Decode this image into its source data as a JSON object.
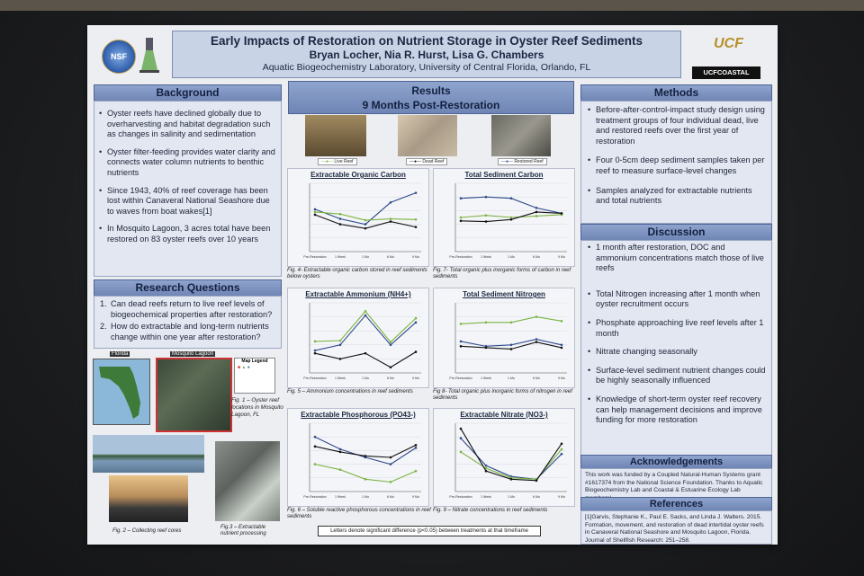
{
  "header": {
    "title": "Early Impacts of Restoration on Nutrient Storage in Oyster Reef Sediments",
    "authors": "Bryan Locher, Nia R. Hurst, Lisa G. Chambers",
    "affiliation": "Aquatic Biogeochemistry Laboratory, University of Central Florida, Orlando, FL",
    "logo_left": "NSF",
    "logo_right": "UCF",
    "logo_right2": "UCFCOASTAL"
  },
  "background": {
    "heading": "Background",
    "items": [
      "Oyster reefs have declined globally due to overharvesting and habitat degradation such as changes in salinity and sedimentation",
      "Oyster filter-feeding provides water clarity and connects water column nutrients to benthic nutrients",
      "Since 1943, 40% of reef coverage has been lost within Canaveral National Seashore due to waves from boat wakes[1]",
      "In Mosquito Lagoon, 3 acres total have been restored on 83 oyster reefs over 10 years"
    ]
  },
  "questions": {
    "heading": "Research Questions",
    "items": [
      "Can dead reefs return to live reef levels of biogeochemical properties after restoration?",
      "How do extractable and long-term nutrients change within one year after restoration?"
    ]
  },
  "figures": {
    "map_florida": "Florida",
    "map_lagoon": "Mosquito Lagoon",
    "map_legend": "Map Legend",
    "fig1": "Fig. 1 – Oyster reef locations in Mosquito Lagoon, FL",
    "fig2": "Fig. 2 – Collecting reef cores",
    "fig3": "Fig.3 – Extractable nutrient processing"
  },
  "results": {
    "heading": "Results",
    "subheading": "9 Months Post-Restoration",
    "photo_labels": [
      "Live Reef",
      "Dead Reef",
      "Restored Reef"
    ],
    "captions": [
      "Fig. 4- Extractable organic carbon stored in reef sediments below oysters",
      "Fig. 7- Total organic plus inorganic forms of carbon in reef sediments",
      "Fig. 5 – Ammonium concentrations in reef sediments",
      "Fig 8- Total organic plus inorganic forms of nitrogen in reef sediments",
      "Fig. 6 – Soluble reactive phosphorous concentrations in reef sediments",
      "Fig. 9 – Nitrate concentrations in reef sediments"
    ],
    "footnote": "Letters denote significant difference (p<0.05) between treatments at that timeframe"
  },
  "chart_data": [
    {
      "type": "line",
      "title": "Extractable Organic Carbon",
      "categories": [
        "Pre-Restoration",
        "1 Week",
        "1 Mo",
        "6 Mo",
        "9 Mo"
      ],
      "series": [
        {
          "color": "#2f4a8c",
          "values": [
            0.62,
            0.48,
            0.4,
            0.72,
            0.86
          ]
        },
        {
          "color": "#7cb342",
          "values": [
            0.58,
            0.55,
            0.46,
            0.48,
            0.47
          ]
        },
        {
          "color": "#111111",
          "values": [
            0.54,
            0.4,
            0.34,
            0.44,
            0.36
          ]
        }
      ]
    },
    {
      "type": "line",
      "title": "Total Sediment Carbon",
      "categories": [
        "Pre-Restoration",
        "1 Week",
        "1 Mo",
        "6 Mo",
        "9 Mo"
      ],
      "series": [
        {
          "color": "#2f4a8c",
          "values": [
            0.78,
            0.8,
            0.78,
            0.64,
            0.56
          ]
        },
        {
          "color": "#7cb342",
          "values": [
            0.5,
            0.53,
            0.5,
            0.52,
            0.54
          ]
        },
        {
          "color": "#111111",
          "values": [
            0.45,
            0.44,
            0.47,
            0.58,
            0.56
          ]
        }
      ]
    },
    {
      "type": "line",
      "title": "Extractable Ammonium (NH4+)",
      "categories": [
        "Pre-Restoration",
        "1 Week",
        "1 Mo",
        "6 Mo",
        "9 Mo"
      ],
      "series": [
        {
          "color": "#2f4a8c",
          "values": [
            0.32,
            0.4,
            0.82,
            0.4,
            0.72
          ]
        },
        {
          "color": "#7cb342",
          "values": [
            0.45,
            0.46,
            0.88,
            0.44,
            0.78
          ]
        },
        {
          "color": "#111111",
          "values": [
            0.28,
            0.2,
            0.28,
            0.08,
            0.3
          ]
        }
      ]
    },
    {
      "type": "line",
      "title": "Total Sediment Nitrogen",
      "categories": [
        "Pre-Restoration",
        "1 Week",
        "1 Mo",
        "6 Mo",
        "9 Mo"
      ],
      "series": [
        {
          "color": "#2f4a8c",
          "values": [
            0.45,
            0.38,
            0.4,
            0.48,
            0.4
          ]
        },
        {
          "color": "#7cb342",
          "values": [
            0.7,
            0.72,
            0.72,
            0.8,
            0.74
          ]
        },
        {
          "color": "#111111",
          "values": [
            0.38,
            0.36,
            0.34,
            0.44,
            0.36
          ]
        }
      ]
    },
    {
      "type": "line",
      "title": "Extractable Phosphorous (PO43-)",
      "categories": [
        "Pre-Restoration",
        "1 Week",
        "1 Mo",
        "6 Mo",
        "9 Mo"
      ],
      "series": [
        {
          "color": "#2f4a8c",
          "values": [
            0.8,
            0.62,
            0.5,
            0.4,
            0.64
          ]
        },
        {
          "color": "#111111",
          "values": [
            0.66,
            0.58,
            0.52,
            0.5,
            0.68
          ]
        },
        {
          "color": "#7cb342",
          "values": [
            0.4,
            0.32,
            0.18,
            0.14,
            0.3
          ]
        }
      ]
    },
    {
      "type": "line",
      "title": "Extractable Nitrate (NO3-)",
      "categories": [
        "Pre-Restoration",
        "1 Week",
        "1 Mo",
        "6 Mo",
        "9 Mo"
      ],
      "series": [
        {
          "color": "#2f4a8c",
          "values": [
            0.78,
            0.38,
            0.22,
            0.18,
            0.55
          ]
        },
        {
          "color": "#7cb342",
          "values": [
            0.58,
            0.34,
            0.2,
            0.18,
            0.62
          ]
        },
        {
          "color": "#111111",
          "values": [
            0.92,
            0.3,
            0.18,
            0.16,
            0.7
          ]
        }
      ]
    }
  ],
  "methods": {
    "heading": "Methods",
    "items": [
      "Before-after-control-impact study design using treatment groups of four individual dead, live and restored reefs over the first year of restoration",
      "Four 0-5cm deep sediment samples taken per reef to measure surface-level changes",
      "Samples analyzed for extractable nutrients and total nutrients"
    ]
  },
  "discussion": {
    "heading": "Discussion",
    "items": [
      "1 month after restoration, DOC and ammonium concentrations match those of live reefs",
      "Total Nitrogen increasing after 1 month when oyster recruitment occurs",
      "Phosphate approaching live reef levels after 1 month",
      "Nitrate changing seasonally",
      "Surface-level sediment nutrient changes could be highly seasonally influenced",
      "Knowledge of short-term oyster reef recovery can help management decisions and improve funding for more restoration"
    ]
  },
  "acknowledgements": {
    "heading": "Acknowledgements",
    "text": "This work was funded by a Coupled Natural-Human Systems grant #1617374 from the National Science Foundation. Thanks to Aquatic Biogeochemistry Lab and Coastal & Estuarine Ecology Lab members!"
  },
  "references": {
    "heading": "References",
    "text": "[1]Garvis, Stephanie K., Paul E. Sacks, and Linda J. Walters. 2015. Formation, movement, and restoration of dead intertidal oyster reefs in Canaveral National Seashore and Mosquito Lagoon, Florida. Journal of Shellfish Research: 251–258."
  }
}
